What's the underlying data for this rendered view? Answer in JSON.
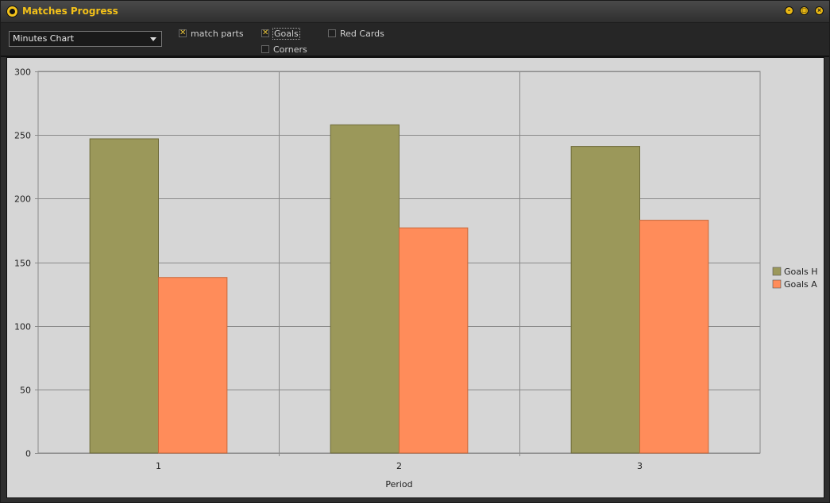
{
  "window": {
    "title": "Matches Progress",
    "app_icon": "ball-icon",
    "controls": [
      "minimize-icon",
      "maximize-icon",
      "close-icon"
    ]
  },
  "toolbar": {
    "chart_select": {
      "value": "Minutes Chart"
    },
    "checkboxes": [
      {
        "label": "match parts",
        "checked": true
      },
      {
        "label": "Goals",
        "checked": true,
        "focused": true
      },
      {
        "label": "Red Cards",
        "checked": false
      },
      {
        "label": "Corners",
        "checked": false
      }
    ]
  },
  "chart_data": {
    "type": "bar",
    "categories": [
      "1",
      "2",
      "3"
    ],
    "series": [
      {
        "name": "Goals H",
        "values": [
          247,
          258,
          241
        ],
        "color": "#9b985a"
      },
      {
        "name": "Goals A",
        "values": [
          138,
          177,
          183
        ],
        "color": "#ff8c5a"
      }
    ],
    "xlabel": "Period",
    "ylabel": "",
    "ylim": [
      0,
      300
    ],
    "yticks": [
      0,
      50,
      100,
      150,
      200,
      250,
      300
    ],
    "grid": true,
    "legend": "right"
  }
}
